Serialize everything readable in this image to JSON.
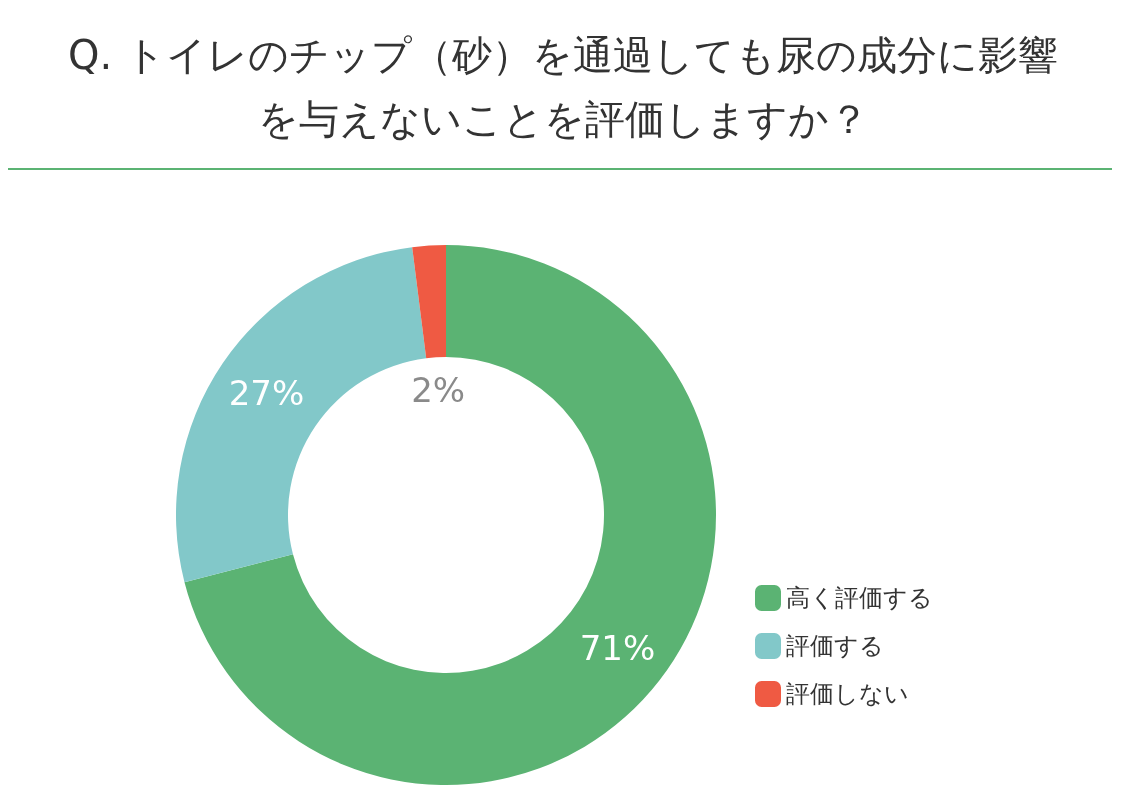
{
  "chart_data": {
    "type": "donut",
    "title": "Q. トイレのチップ（砂）を通過しても尿の成分に影響を与えないことを評価しますか？",
    "categories": [
      "高く評価する",
      "評価する",
      "評価しない"
    ],
    "values": [
      71,
      27,
      2
    ],
    "value_labels": [
      "71%",
      "27%",
      "2%"
    ],
    "colors": [
      "#5bb373",
      "#82c8c9",
      "#ef5a43"
    ],
    "legend": "bottom right"
  }
}
